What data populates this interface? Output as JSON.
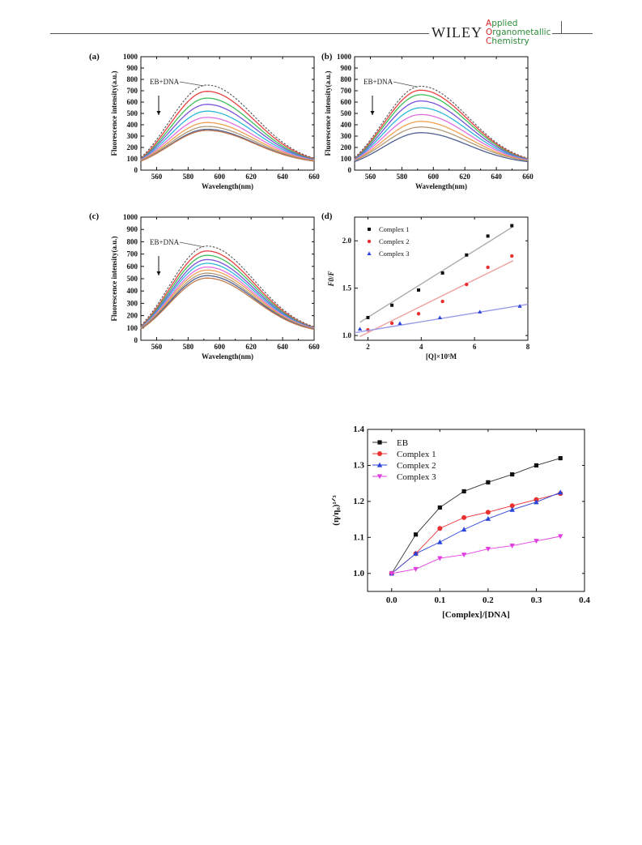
{
  "header": {
    "publisher": "WILEY",
    "journal_caps": [
      "A",
      "O",
      "C"
    ],
    "journal_rest": [
      "pplied",
      "rganometallic",
      "hemistry"
    ]
  },
  "colors": {
    "curves": [
      "#9a9a9a",
      "#e84040",
      "#3fbf5a",
      "#7a52d8",
      "#2fb8d8",
      "#e070e0",
      "#f0a050",
      "#b09a78",
      "#506090",
      "#c07a50",
      "#a87e2e"
    ],
    "series_black": "#111111",
    "series_red": "#e83030",
    "series_blue": "#2a44d8",
    "series_magenta": "#e040e0",
    "fit_gray": "#aaaaaa",
    "fit_red": "#f0a0a0",
    "fit_blue": "#9a9ae8"
  },
  "chart_data": [
    {
      "panel": "(a)",
      "type": "line",
      "xlabel": "Wavelength(nm)",
      "ylabel": "Fluorescence intensity(a.u.)",
      "xlim": [
        550,
        660
      ],
      "ylim": [
        0,
        1000
      ],
      "xticks": [
        560,
        580,
        600,
        620,
        640,
        660
      ],
      "yticks": [
        0,
        100,
        200,
        300,
        400,
        500,
        600,
        700,
        800,
        900,
        1000
      ],
      "annotation": "EB+DNA",
      "dashed_series_index": 0,
      "peak_x": 592,
      "series": [
        {
          "peak": 750,
          "base_left": 110,
          "base_right": 105
        },
        {
          "peak": 695,
          "base_left": 100,
          "base_right": 100
        },
        {
          "peak": 635,
          "base_left": 95,
          "base_right": 95
        },
        {
          "peak": 580,
          "base_left": 92,
          "base_right": 92
        },
        {
          "peak": 520,
          "base_left": 90,
          "base_right": 90
        },
        {
          "peak": 465,
          "base_left": 88,
          "base_right": 88
        },
        {
          "peak": 420,
          "base_left": 85,
          "base_right": 85
        },
        {
          "peak": 385,
          "base_left": 83,
          "base_right": 83
        },
        {
          "peak": 360,
          "base_left": 80,
          "base_right": 80
        },
        {
          "peak": 350,
          "base_left": 80,
          "base_right": 80
        }
      ]
    },
    {
      "panel": "(b)",
      "type": "line",
      "xlabel": "Wavelength(nm)",
      "ylabel": "Fluorescence intensity(a.u.)",
      "xlim": [
        550,
        660
      ],
      "ylim": [
        0,
        1000
      ],
      "xticks": [
        560,
        580,
        600,
        620,
        640,
        660
      ],
      "yticks": [
        0,
        100,
        200,
        300,
        400,
        500,
        600,
        700,
        800,
        900,
        1000
      ],
      "annotation": "EB+DNA",
      "dashed_series_index": 0,
      "peak_x": 592,
      "series": [
        {
          "peak": 740,
          "base_left": 110,
          "base_right": 105
        },
        {
          "peak": 705,
          "base_left": 100,
          "base_right": 100
        },
        {
          "peak": 665,
          "base_left": 96,
          "base_right": 96
        },
        {
          "peak": 610,
          "base_left": 93,
          "base_right": 93
        },
        {
          "peak": 550,
          "base_left": 90,
          "base_right": 90
        },
        {
          "peak": 490,
          "base_left": 88,
          "base_right": 88
        },
        {
          "peak": 430,
          "base_left": 85,
          "base_right": 85
        },
        {
          "peak": 380,
          "base_left": 83,
          "base_right": 83
        },
        {
          "peak": 330,
          "base_left": 75,
          "base_right": 75
        }
      ]
    },
    {
      "panel": "(c)",
      "type": "line",
      "xlabel": "Wavelength(nm)",
      "ylabel": "Fluorescence intensity(a.u.)",
      "xlim": [
        550,
        660
      ],
      "ylim": [
        0,
        1000
      ],
      "xticks": [
        560,
        580,
        600,
        620,
        640,
        660
      ],
      "yticks": [
        0,
        100,
        200,
        300,
        400,
        500,
        600,
        700,
        800,
        900,
        1000
      ],
      "annotation": "EB+DNA",
      "dashed_series_index": 0,
      "peak_x": 592,
      "series": [
        {
          "peak": 765,
          "base_left": 120,
          "base_right": 110
        },
        {
          "peak": 725,
          "base_left": 110,
          "base_right": 105
        },
        {
          "peak": 690,
          "base_left": 105,
          "base_right": 102
        },
        {
          "peak": 655,
          "base_left": 102,
          "base_right": 100
        },
        {
          "peak": 625,
          "base_left": 100,
          "base_right": 98
        },
        {
          "peak": 595,
          "base_left": 98,
          "base_right": 96
        },
        {
          "peak": 570,
          "base_left": 96,
          "base_right": 94
        },
        {
          "peak": 545,
          "base_left": 94,
          "base_right": 92
        },
        {
          "peak": 525,
          "base_left": 92,
          "base_right": 90
        },
        {
          "peak": 505,
          "base_left": 90,
          "base_right": 88
        }
      ]
    },
    {
      "panel": "(d)",
      "type": "scatter",
      "xlabel": "[Q]×10⁵M",
      "ylabel": "F0/F",
      "xlim": [
        1.5,
        8
      ],
      "ylim": [
        0.95,
        2.25
      ],
      "xticks": [
        2,
        4,
        6,
        8
      ],
      "yticks": [
        1.0,
        1.5,
        2.0
      ],
      "series": [
        {
          "name": "Complex 1",
          "marker": "square",
          "x": [
            2.0,
            2.9,
            3.9,
            4.8,
            5.7,
            6.5,
            7.4
          ],
          "y": [
            1.19,
            1.32,
            1.48,
            1.66,
            1.85,
            2.05,
            2.16
          ],
          "fit": [
            [
              1.7,
              1.14
            ],
            [
              7.45,
              2.15
            ]
          ]
        },
        {
          "name": "Complex 2",
          "marker": "circle",
          "x": [
            2.0,
            2.9,
            3.9,
            4.8,
            5.7,
            6.5,
            7.4
          ],
          "y": [
            1.06,
            1.13,
            1.23,
            1.36,
            1.54,
            1.72,
            1.84
          ],
          "fit": [
            [
              1.7,
              0.99
            ],
            [
              7.45,
              1.79
            ]
          ]
        },
        {
          "name": "Complex 3",
          "marker": "triangle",
          "x": [
            1.7,
            3.2,
            4.7,
            6.2,
            7.7
          ],
          "y": [
            1.07,
            1.13,
            1.19,
            1.25,
            1.31
          ],
          "fit": [
            [
              1.5,
              1.03
            ],
            [
              8.0,
              1.33
            ]
          ]
        }
      ]
    },
    {
      "panel": "viscosity",
      "type": "line",
      "xlabel": "[Complex]/[DNA]",
      "ylabel": "(η/η₀)¹ᐟ³",
      "xlim": [
        -0.05,
        0.4
      ],
      "ylim": [
        0.95,
        1.4
      ],
      "xticks": [
        0.0,
        0.1,
        0.2,
        0.3,
        0.4
      ],
      "yticks": [
        1.0,
        1.1,
        1.2,
        1.3,
        1.4
      ],
      "legend_position": "top-left",
      "series": [
        {
          "name": "EB",
          "marker": "square",
          "x": [
            0,
            0.05,
            0.1,
            0.15,
            0.2,
            0.25,
            0.3,
            0.35
          ],
          "y": [
            1.0,
            1.108,
            1.183,
            1.228,
            1.253,
            1.275,
            1.3,
            1.32
          ]
        },
        {
          "name": "Complex 1",
          "marker": "circle",
          "x": [
            0,
            0.05,
            0.1,
            0.15,
            0.2,
            0.25,
            0.3,
            0.35
          ],
          "y": [
            1.0,
            1.055,
            1.125,
            1.155,
            1.17,
            1.188,
            1.205,
            1.222
          ]
        },
        {
          "name": "Complex 2",
          "marker": "triangle",
          "x": [
            0,
            0.05,
            0.1,
            0.15,
            0.2,
            0.25,
            0.3,
            0.35
          ],
          "y": [
            1.0,
            1.055,
            1.087,
            1.122,
            1.152,
            1.177,
            1.198,
            1.225
          ]
        },
        {
          "name": "Complex 3",
          "marker": "triangle-down",
          "x": [
            0,
            0.05,
            0.1,
            0.15,
            0.2,
            0.25,
            0.3,
            0.35
          ],
          "y": [
            1.0,
            1.012,
            1.042,
            1.052,
            1.068,
            1.077,
            1.09,
            1.103
          ]
        }
      ]
    }
  ]
}
